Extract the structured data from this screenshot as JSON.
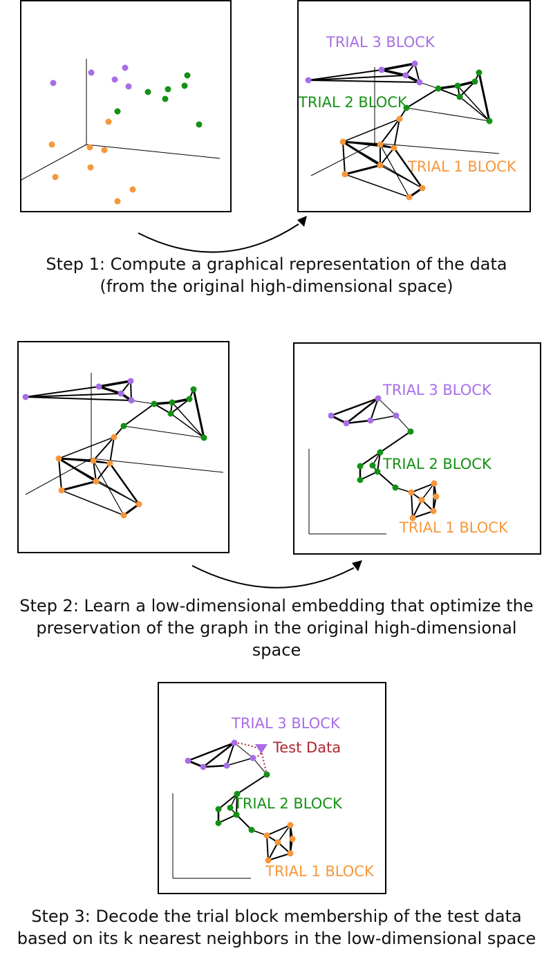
{
  "colors": {
    "trial1": "#f7963a",
    "trial2": "#149114",
    "trial3": "#a86de6",
    "test": "#b0282e",
    "edge": "#000000"
  },
  "labels": {
    "trial1": "TRIAL 1 BLOCK",
    "trial2": "TRIAL 2 BLOCK",
    "trial3": "TRIAL 3 BLOCK",
    "test_data": "Test Data"
  },
  "steps": {
    "step1": {
      "line1": "Step 1: Compute a graphical representation of the data",
      "line2": "(from the original high-dimensional space)"
    },
    "step2": {
      "line1": "Step 2: Learn a low-dimensional embedding that optimize the",
      "line2": "preservation of the graph in the original high-dimensional",
      "line3": "space"
    },
    "step3": {
      "line1": "Step 3: Decode the trial block membership of the test data",
      "line2": "based on its k nearest neighbors in the low-dimensional space"
    }
  }
}
